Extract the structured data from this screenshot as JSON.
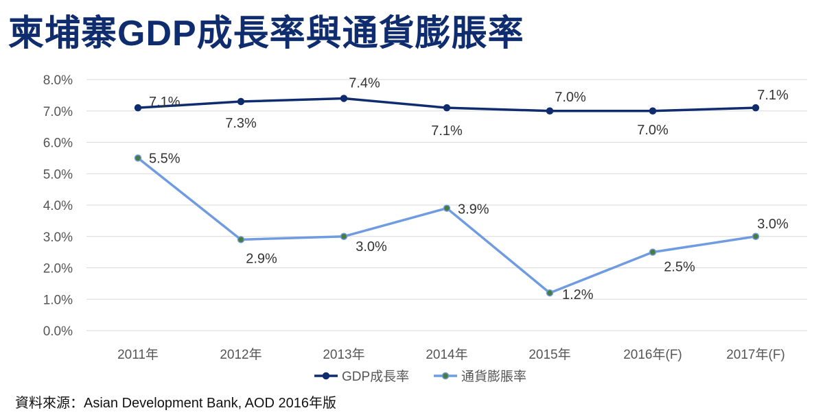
{
  "title": "柬埔寨GDP成長率與通貨膨脹率",
  "source": "資料來源：Asian Development Bank, AOD 2016年版",
  "colors": {
    "gdp": "#0f2d6e",
    "inflation": "#6f9be0",
    "inflation_marker": "#4a7c3f",
    "grid": "#d9d9d9"
  },
  "chart_data": {
    "type": "line",
    "categories": [
      "2011年",
      "2012年",
      "2013年",
      "2014年",
      "2015年",
      "2016年(F)",
      "2017年(F)"
    ],
    "ylim": [
      0,
      8
    ],
    "yticks": [
      "0.0%",
      "1.0%",
      "2.0%",
      "3.0%",
      "4.0%",
      "5.0%",
      "6.0%",
      "7.0%",
      "8.0%"
    ],
    "grid": true,
    "legend": "bottom",
    "series": [
      {
        "name": "GDP成長率",
        "values": [
          7.1,
          7.3,
          7.4,
          7.1,
          7.0,
          7.0,
          7.1
        ],
        "labels": [
          "7.1%",
          "7.3%",
          "7.4%",
          "7.1%",
          "7.0%",
          "7.0%",
          "7.1%"
        ]
      },
      {
        "name": "通貨膨脹率",
        "values": [
          5.5,
          2.9,
          3.0,
          3.9,
          1.2,
          2.5,
          3.0
        ],
        "labels": [
          "5.5%",
          "2.9%",
          "3.0%",
          "3.9%",
          "1.2%",
          "2.5%",
          "3.0%"
        ]
      }
    ]
  }
}
